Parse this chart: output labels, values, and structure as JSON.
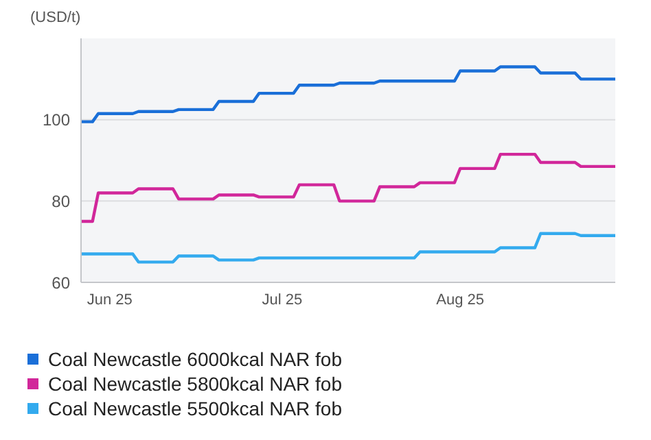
{
  "chart_data": {
    "type": "line",
    "ylabel": "(USD/t)",
    "x": [
      "2025-05-27",
      "2025-05-29",
      "2025-05-30",
      "2025-06-05",
      "2025-06-06",
      "2025-06-12",
      "2025-06-13",
      "2025-06-19",
      "2025-06-20",
      "2025-06-26",
      "2025-06-27",
      "2025-07-03",
      "2025-07-04",
      "2025-07-10",
      "2025-07-11",
      "2025-07-17",
      "2025-07-18",
      "2025-07-24",
      "2025-07-25",
      "2025-07-31",
      "2025-08-01",
      "2025-08-07",
      "2025-08-08",
      "2025-08-14",
      "2025-08-15",
      "2025-08-21",
      "2025-08-22",
      "2025-08-28"
    ],
    "series": [
      {
        "name": "Coal Newcastle 6000kcal NAR fob",
        "color": "#1a6fd8",
        "values": [
          99.5,
          99.5,
          101.5,
          101.5,
          102,
          102,
          102.5,
          102.5,
          104.5,
          104.5,
          106.5,
          106.5,
          108.5,
          108.5,
          109,
          109,
          109.5,
          109.5,
          109.5,
          109.5,
          112,
          112,
          113,
          113,
          111.5,
          111.5,
          110,
          110
        ]
      },
      {
        "name": "Coal Newcastle 5800kcal NAR fob",
        "color": "#d1279a",
        "values": [
          75,
          75,
          82,
          82,
          83,
          83,
          80.5,
          80.5,
          81.5,
          81.5,
          81,
          81,
          84,
          84,
          80,
          80,
          83.5,
          83.5,
          84.5,
          84.5,
          88,
          88,
          91.5,
          91.5,
          89.5,
          89.5,
          88.5,
          88.5
        ]
      },
      {
        "name": "Coal Newcastle 5500kcal NAR fob",
        "color": "#33aaee",
        "values": [
          67,
          67,
          67,
          67,
          65,
          65,
          66.5,
          66.5,
          65.5,
          65.5,
          66,
          66,
          66,
          66,
          66,
          66,
          66,
          66,
          67.5,
          67.5,
          67.5,
          67.5,
          68.5,
          68.5,
          72,
          72,
          71.5,
          71.5
        ]
      }
    ],
    "xlim": [
      "2025-05-27",
      "2025-08-28"
    ],
    "xticks": [
      {
        "value": "2025-06-01",
        "label": "Jun 25"
      },
      {
        "value": "2025-07-01",
        "label": "Jul 25"
      },
      {
        "value": "2025-08-01",
        "label": "Aug 25"
      }
    ],
    "ylim": [
      60,
      120
    ],
    "yticks": [
      60,
      80,
      100
    ],
    "grid": "y",
    "legend": "bottom"
  }
}
